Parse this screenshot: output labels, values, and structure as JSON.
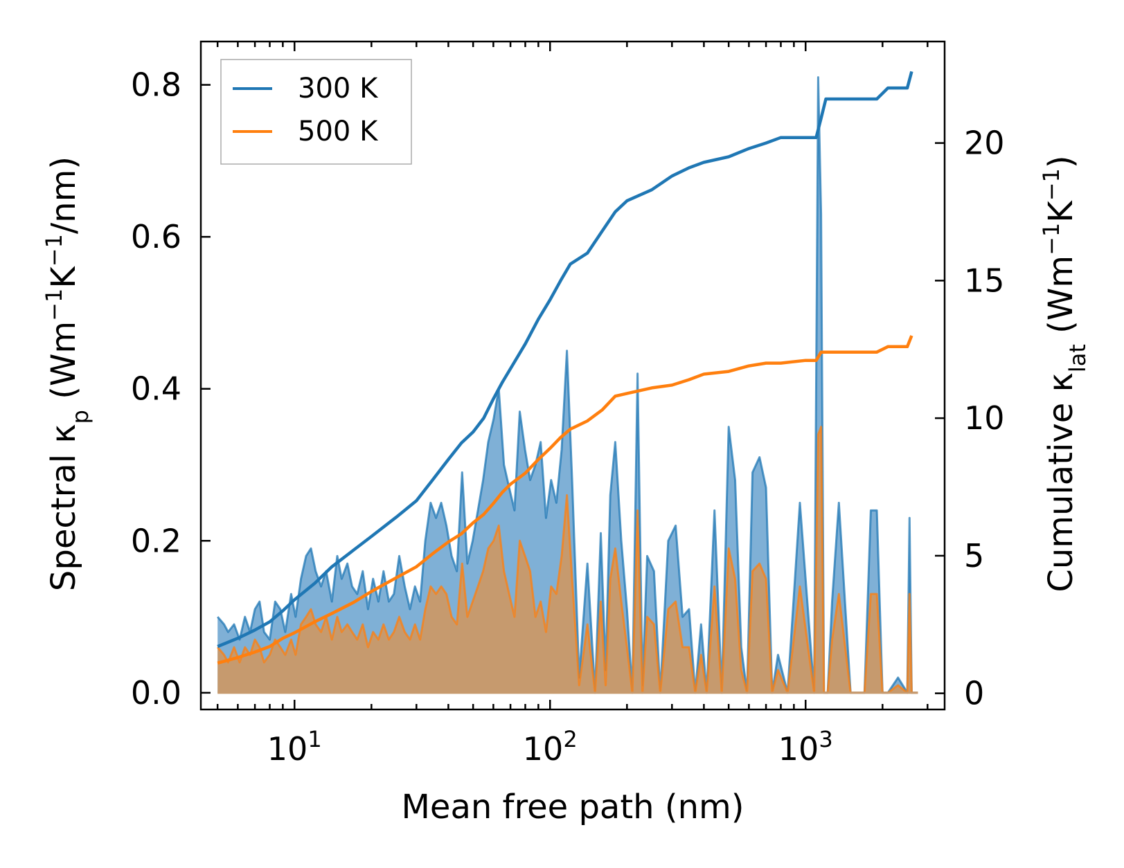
{
  "chart_data": {
    "type": "line",
    "title": "",
    "xlabel": "Mean free path (nm)",
    "ylabel_left_parts": [
      "Spectral κ",
      "p",
      " (Wm",
      "−1",
      "K",
      "−1",
      "/nm)"
    ],
    "ylabel_right_parts": [
      "Cumulative κ",
      "lat",
      " (Wm",
      "−1",
      "K",
      "−1",
      ")"
    ],
    "xscale": "log",
    "xlim": [
      4.3,
      3500
    ],
    "ylim_left": [
      -0.022,
      0.857
    ],
    "ylim_right": [
      -0.5882,
      23.6889
    ],
    "xticks": [
      {
        "value": 10,
        "base": "10",
        "exp": "1"
      },
      {
        "value": 100,
        "base": "10",
        "exp": "2"
      },
      {
        "value": 1000,
        "base": "10",
        "exp": "3"
      }
    ],
    "yticks_left": [
      "0.0",
      "0.2",
      "0.4",
      "0.6",
      "0.8"
    ],
    "yticks_left_values": [
      0.0,
      0.2,
      0.4,
      0.6,
      0.8
    ],
    "yticks_right": [
      "0",
      "5",
      "10",
      "15",
      "20"
    ],
    "yticks_right_values": [
      0,
      5,
      10,
      15,
      20
    ],
    "legend": {
      "position": "top-left",
      "entries": [
        "300 K",
        "500 K"
      ]
    },
    "colors": {
      "300 K": "#1f77b4",
      "500 K": "#ff7f0e",
      "spectral_300_fill": "#7fb0d6",
      "spectral_500_fill": "#c69a6e"
    },
    "series": [
      {
        "name": "300 K cumulative",
        "axis": "right",
        "kind": "line",
        "legend": "300 K",
        "x": [
          5,
          6,
          7,
          8,
          9,
          10,
          12,
          14,
          17,
          20,
          25,
          30,
          35,
          40,
          45,
          50,
          55,
          60,
          65,
          70,
          80,
          90,
          100,
          110,
          120,
          140,
          160,
          180,
          200,
          250,
          300,
          350,
          400,
          500,
          600,
          700,
          800,
          1000,
          1100,
          1150,
          1200,
          1500,
          1900,
          2100,
          2500,
          2600
        ],
        "y": [
          1.7,
          2.0,
          2.3,
          2.6,
          3.0,
          3.4,
          4.0,
          4.6,
          5.2,
          5.7,
          6.4,
          7.0,
          7.8,
          8.5,
          9.1,
          9.5,
          10.0,
          10.7,
          11.3,
          11.8,
          12.7,
          13.6,
          14.3,
          15.0,
          15.6,
          16.0,
          16.8,
          17.5,
          17.9,
          18.3,
          18.8,
          19.1,
          19.3,
          19.5,
          19.8,
          20.0,
          20.2,
          20.2,
          20.2,
          20.9,
          21.6,
          21.6,
          21.6,
          22.0,
          22.0,
          22.6
        ]
      },
      {
        "name": "500 K cumulative",
        "axis": "right",
        "kind": "line",
        "legend": "500 K",
        "x": [
          5,
          6,
          7,
          8,
          9,
          10,
          12,
          14,
          17,
          20,
          25,
          30,
          35,
          40,
          45,
          50,
          55,
          60,
          65,
          70,
          80,
          90,
          100,
          110,
          120,
          140,
          160,
          180,
          200,
          250,
          300,
          350,
          400,
          500,
          600,
          700,
          800,
          1000,
          1100,
          1150,
          1200,
          1500,
          1900,
          2100,
          2500,
          2600
        ],
        "y": [
          1.1,
          1.3,
          1.5,
          1.7,
          2.0,
          2.2,
          2.6,
          2.9,
          3.3,
          3.7,
          4.2,
          4.6,
          5.1,
          5.5,
          5.8,
          6.2,
          6.5,
          6.9,
          7.3,
          7.6,
          8.0,
          8.5,
          8.9,
          9.3,
          9.6,
          9.9,
          10.3,
          10.8,
          10.9,
          11.1,
          11.2,
          11.4,
          11.6,
          11.7,
          11.9,
          12.0,
          12.0,
          12.1,
          12.1,
          12.4,
          12.4,
          12.4,
          12.4,
          12.6,
          12.6,
          13.0
        ]
      },
      {
        "name": "300 K spectral",
        "axis": "left",
        "kind": "area",
        "x": [
          5.0,
          5.3,
          5.5,
          5.8,
          6.1,
          6.4,
          6.7,
          7.0,
          7.3,
          7.6,
          8.0,
          8.4,
          8.8,
          9.2,
          9.7,
          10.1,
          10.6,
          11.1,
          11.6,
          12.1,
          12.7,
          13.3,
          14.0,
          14.7,
          15.3,
          16.1,
          16.8,
          17.6,
          18.5,
          19.4,
          20.3,
          21.3,
          22.3,
          23.4,
          24.5,
          25.7,
          27.0,
          28.3,
          29.6,
          31.0,
          32.5,
          34.1,
          35.8,
          37.5,
          39.3,
          41.2,
          43.2,
          45.3,
          47.5,
          49.8,
          52.2,
          54.7,
          57.3,
          60.1,
          63.0,
          66.0,
          69.2,
          72.6,
          76.1,
          79.8,
          83.6,
          87.7,
          91.9,
          96.4,
          101.0,
          105.9,
          111.0,
          116.4,
          122.0,
          130.0,
          140.0,
          150.0,
          158.0,
          165.0,
          172.0,
          180.0,
          190.0,
          200.0,
          210.0,
          220.0,
          230.0,
          240.0,
          255.0,
          270.0,
          290.0,
          310.0,
          330.0,
          350.0,
          370.0,
          390.0,
          410.0,
          440.0,
          470.0,
          500.0,
          530.0,
          560.0,
          590.0,
          620.0,
          660.0,
          700.0,
          740.0,
          780.0,
          850.0,
          950.0,
          1080.0,
          1120.0,
          1150.0,
          1180.0,
          1220.0,
          1270.0,
          1350.0,
          1500.0,
          1700.0,
          1800.0,
          1900.0,
          2000.0,
          2100.0,
          2300.0,
          2500.0,
          2550.0,
          2600.0,
          2650.0,
          2700.0,
          2750.0
        ],
        "y": [
          0.1,
          0.09,
          0.08,
          0.09,
          0.07,
          0.1,
          0.08,
          0.11,
          0.12,
          0.08,
          0.07,
          0.12,
          0.11,
          0.08,
          0.13,
          0.1,
          0.15,
          0.18,
          0.19,
          0.16,
          0.14,
          0.16,
          0.12,
          0.18,
          0.15,
          0.17,
          0.14,
          0.13,
          0.16,
          0.11,
          0.15,
          0.12,
          0.16,
          0.12,
          0.13,
          0.18,
          0.14,
          0.11,
          0.14,
          0.12,
          0.2,
          0.25,
          0.23,
          0.25,
          0.22,
          0.18,
          0.16,
          0.29,
          0.17,
          0.2,
          0.24,
          0.28,
          0.33,
          0.36,
          0.4,
          0.3,
          0.27,
          0.24,
          0.37,
          0.32,
          0.28,
          0.3,
          0.33,
          0.23,
          0.28,
          0.25,
          0.32,
          0.45,
          0.28,
          0.02,
          0.17,
          0.0,
          0.21,
          0.03,
          0.26,
          0.33,
          0.2,
          0.11,
          0.0,
          0.42,
          0.01,
          0.18,
          0.16,
          0.0,
          0.2,
          0.22,
          0.1,
          0.11,
          0.0,
          0.09,
          0.0,
          0.24,
          0.0,
          0.35,
          0.28,
          0.06,
          0.0,
          0.29,
          0.31,
          0.27,
          0.0,
          0.05,
          0.0,
          0.25,
          0.0,
          0.81,
          0.63,
          0.0,
          0.0,
          0.12,
          0.25,
          0.0,
          0.0,
          0.24,
          0.24,
          0.0,
          0.0,
          0.02,
          0.0,
          0.23,
          0.0,
          0.0,
          0.0,
          0.0
        ],
        "note": "shaded area under curve"
      },
      {
        "name": "500 K spectral",
        "axis": "left",
        "kind": "area",
        "x": [
          5.0,
          5.3,
          5.5,
          5.8,
          6.1,
          6.4,
          6.7,
          7.0,
          7.3,
          7.6,
          8.0,
          8.4,
          8.8,
          9.2,
          9.7,
          10.1,
          10.6,
          11.1,
          11.6,
          12.1,
          12.7,
          13.3,
          14.0,
          14.7,
          15.3,
          16.1,
          16.8,
          17.6,
          18.5,
          19.4,
          20.3,
          21.3,
          22.3,
          23.4,
          24.5,
          25.7,
          27.0,
          28.3,
          29.6,
          31.0,
          32.5,
          34.1,
          35.8,
          37.5,
          39.3,
          41.2,
          43.2,
          45.3,
          47.5,
          49.8,
          52.2,
          54.7,
          57.3,
          60.1,
          63.0,
          66.0,
          69.2,
          72.6,
          76.1,
          79.8,
          83.6,
          87.7,
          91.9,
          96.4,
          101.0,
          105.9,
          111.0,
          116.4,
          122.0,
          130.0,
          140.0,
          150.0,
          158.0,
          165.0,
          172.0,
          180.0,
          190.0,
          200.0,
          210.0,
          220.0,
          230.0,
          240.0,
          255.0,
          270.0,
          290.0,
          310.0,
          330.0,
          350.0,
          370.0,
          390.0,
          410.0,
          440.0,
          470.0,
          500.0,
          530.0,
          560.0,
          590.0,
          620.0,
          660.0,
          700.0,
          740.0,
          780.0,
          850.0,
          950.0,
          1080.0,
          1120.0,
          1150.0,
          1180.0,
          1220.0,
          1270.0,
          1350.0,
          1500.0,
          1700.0,
          1800.0,
          1900.0,
          2000.0,
          2100.0,
          2300.0,
          2500.0,
          2550.0,
          2600.0,
          2650.0,
          2700.0,
          2750.0
        ],
        "y": [
          0.06,
          0.05,
          0.04,
          0.06,
          0.04,
          0.06,
          0.05,
          0.07,
          0.06,
          0.04,
          0.05,
          0.07,
          0.06,
          0.05,
          0.07,
          0.05,
          0.09,
          0.1,
          0.11,
          0.09,
          0.08,
          0.1,
          0.07,
          0.1,
          0.08,
          0.09,
          0.08,
          0.07,
          0.09,
          0.06,
          0.08,
          0.07,
          0.09,
          0.07,
          0.08,
          0.1,
          0.08,
          0.07,
          0.09,
          0.07,
          0.11,
          0.14,
          0.13,
          0.14,
          0.13,
          0.1,
          0.09,
          0.17,
          0.1,
          0.12,
          0.14,
          0.16,
          0.19,
          0.2,
          0.22,
          0.16,
          0.13,
          0.1,
          0.2,
          0.18,
          0.16,
          0.1,
          0.12,
          0.08,
          0.14,
          0.13,
          0.18,
          0.26,
          0.15,
          0.01,
          0.09,
          0.0,
          0.12,
          0.01,
          0.15,
          0.19,
          0.12,
          0.06,
          0.0,
          0.24,
          0.0,
          0.1,
          0.09,
          0.0,
          0.11,
          0.12,
          0.06,
          0.06,
          0.0,
          0.05,
          0.0,
          0.14,
          0.0,
          0.19,
          0.15,
          0.03,
          0.0,
          0.16,
          0.17,
          0.15,
          0.0,
          0.03,
          0.0,
          0.14,
          0.0,
          0.34,
          0.35,
          0.0,
          0.0,
          0.07,
          0.13,
          0.0,
          0.0,
          0.13,
          0.13,
          0.0,
          0.0,
          0.01,
          0.0,
          0.13,
          0.0,
          0.0,
          0.0,
          0.0
        ],
        "note": "shaded area under curve"
      }
    ]
  }
}
